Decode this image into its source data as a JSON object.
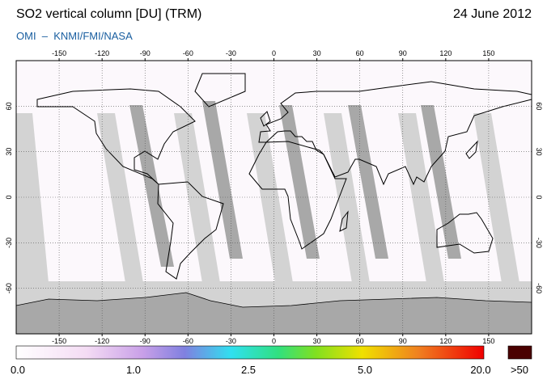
{
  "header": {
    "title": "SO2 vertical column [DU] (TRM)",
    "date": "24 June 2012",
    "credit": "OMI  –  KNMI/FMI/NASA"
  },
  "map": {
    "lon_ticks": [
      -150,
      -120,
      -90,
      -60,
      -30,
      0,
      30,
      60,
      90,
      120,
      150
    ],
    "lat_ticks": [
      -60,
      -30,
      0,
      30,
      60
    ]
  },
  "colorbar": {
    "labels": [
      "0.0",
      "1.0",
      "2.5",
      "5.0",
      "20.0",
      ">50"
    ]
  }
}
